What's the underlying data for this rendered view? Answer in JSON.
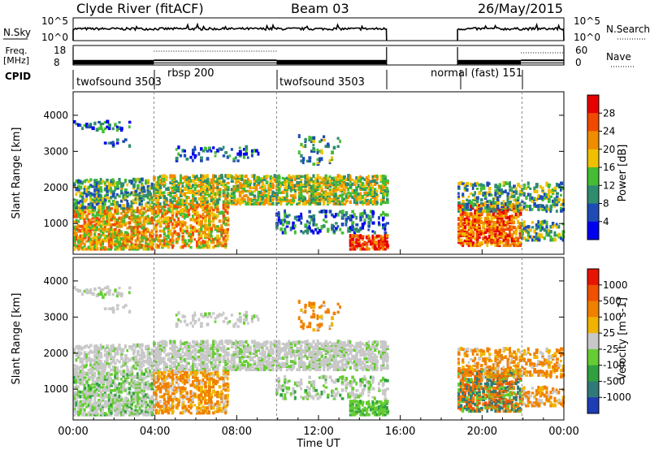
{
  "header": {
    "station": "Clyde River (fitACF)",
    "beam": "Beam 03",
    "date": "26/May/2015"
  },
  "chart_data": [
    {
      "id": "nsky",
      "type": "line",
      "left_label": "N.Sky",
      "right_label": "N.Search",
      "left_ticks": [
        "10^5",
        "10^0"
      ],
      "right_ticks": [
        "10^5",
        "10^0"
      ],
      "segments": [
        [
          0.0,
          15.33
        ],
        [
          18.8,
          24.0
        ]
      ],
      "note": "count shown on log scale"
    },
    {
      "id": "freq",
      "type": "line",
      "left_label_lines": [
        "Freq.",
        "[MHz]"
      ],
      "right_label": "Nave",
      "left_ticks": [
        "18",
        "8"
      ],
      "right_ticks": [
        "60",
        "0"
      ],
      "ylim_left": [
        8,
        18
      ],
      "ylim_right": [
        0,
        60
      ],
      "segments": [
        [
          0.0,
          15.33
        ],
        [
          18.8,
          24.0
        ]
      ]
    },
    {
      "id": "cpid",
      "type": "table",
      "label": "CPID",
      "programs": [
        {
          "name": "twofsound 3503",
          "start": 0.0,
          "end": 3.95
        },
        {
          "name": "rbsp 200",
          "start": 3.95,
          "end": 9.95
        },
        {
          "name": "twofsound 3503",
          "start": 9.95,
          "end": 15.33
        },
        {
          "name": "normal (fast) 151",
          "start": 18.8,
          "end": 21.95
        }
      ]
    },
    {
      "id": "power",
      "type": "heatmap",
      "ylabel": "Slant Range [km]",
      "yticks": [
        "4000",
        "3000",
        "2000",
        "1000"
      ],
      "ylim": [
        150,
        4650
      ],
      "colorbar_label": "Power [dB]",
      "colorbar_ticks": [
        "28",
        "24",
        "20",
        "16",
        "12",
        "8",
        "4"
      ],
      "colorbar_range": [
        0,
        32
      ],
      "colors": [
        "#0000f0",
        "#1e4cb4",
        "#2f8c6e",
        "#44bc33",
        "#f0c000",
        "#f08c00",
        "#f04a00",
        "#e60000"
      ]
    },
    {
      "id": "velocity",
      "type": "heatmap",
      "ylabel": "Slant Range [km]",
      "yticks": [
        "4000",
        "3000",
        "2000",
        "1000"
      ],
      "ylim": [
        150,
        4650
      ],
      "colorbar_label": "Velocity [m s-1]",
      "colorbar_ticks": [
        "1000",
        "500",
        "100",
        "25",
        "-25",
        "-100",
        "-500",
        "-1000"
      ],
      "colorbar_range": [
        -1250,
        1250
      ],
      "colors": [
        "#1e3cb4",
        "#2f7a78",
        "#30a040",
        "#66cc33",
        "#c8c8c8",
        "#f0b400",
        "#f08000",
        "#f05000",
        "#e61400"
      ]
    }
  ],
  "xaxis": {
    "label": "Time UT",
    "ticks": [
      "00:00",
      "04:00",
      "08:00",
      "12:00",
      "16:00",
      "20:00",
      "00:00"
    ],
    "range_hours": [
      0,
      24
    ]
  }
}
